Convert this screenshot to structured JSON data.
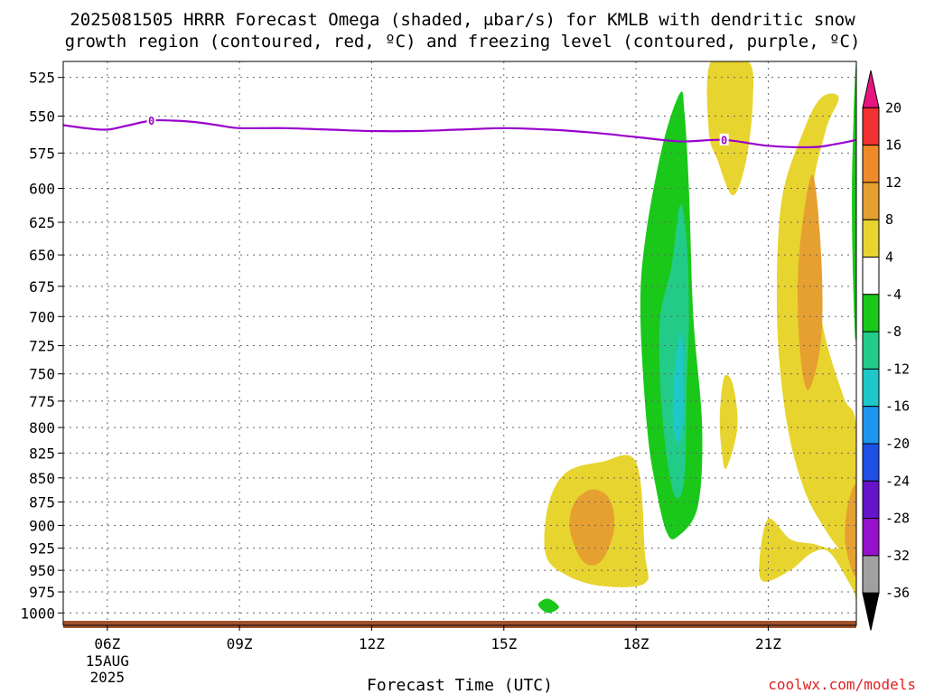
{
  "chart_data": {
    "type": "heatmap",
    "title_line1": "2025081505 HRRR Forecast Omega (shaded, μbar/s) for KMLB with dendritic snow",
    "title_line2": "growth region (contoured, red, ºC) and freezing level (contoured, purple, ºC)",
    "xlabel": "Forecast Time (UTC)",
    "x_ticks": [
      {
        "hour": 6,
        "label": "06Z",
        "sub1": "15AUG",
        "sub2": "2025"
      },
      {
        "hour": 9,
        "label": "09Z"
      },
      {
        "hour": 12,
        "label": "12Z"
      },
      {
        "hour": 15,
        "label": "15Z"
      },
      {
        "hour": 18,
        "label": "18Z"
      },
      {
        "hour": 21,
        "label": "21Z"
      }
    ],
    "xlim": [
      5,
      23
    ],
    "y_ticks": [
      "525",
      "550",
      "575",
      "600",
      "625",
      "650",
      "675",
      "700",
      "725",
      "750",
      "775",
      "800",
      "825",
      "850",
      "875",
      "900",
      "925",
      "950",
      "975",
      "1000"
    ],
    "ylim": [
      1015,
      515
    ],
    "y_scale": "log-pressure (mb)",
    "colorbar": {
      "labels": [
        "20",
        "16",
        "12",
        "8",
        "4",
        "-4",
        "-8",
        "-12",
        "-16",
        "-20",
        "-24",
        "-28",
        "-32",
        "-36"
      ],
      "colors": {
        "c20": "#e8157f",
        "c16": "#f03232",
        "c12": "#ee8a28",
        "c8": "#e6a030",
        "c4": "#e8d42e",
        "cwhite": "#ffffff",
        "cm4": "#19c819",
        "cm8": "#22cc88",
        "cm12": "#1ec8c8",
        "cm16": "#1e96f0",
        "cm20": "#1e50e6",
        "cm24": "#6614cc",
        "cm28": "#9611cc",
        "cm32": "#a0a0a0",
        "cm36": "#000000"
      }
    },
    "freezing_level": {
      "label": "0",
      "color": "#9900cc",
      "points": [
        [
          5,
          556
        ],
        [
          5.5,
          558
        ],
        [
          6,
          559
        ],
        [
          6.5,
          556
        ],
        [
          7,
          553
        ],
        [
          7.5,
          553
        ],
        [
          8,
          554
        ],
        [
          8.5,
          556
        ],
        [
          9,
          558
        ],
        [
          10,
          558
        ],
        [
          11,
          559
        ],
        [
          12,
          560
        ],
        [
          13,
          560
        ],
        [
          14,
          559
        ],
        [
          15,
          558
        ],
        [
          16,
          559
        ],
        [
          17,
          561
        ],
        [
          18,
          564
        ],
        [
          19,
          567
        ],
        [
          20,
          566
        ],
        [
          21,
          570
        ],
        [
          22,
          571
        ],
        [
          22.5,
          569
        ],
        [
          23,
          566
        ]
      ]
    },
    "omega_regions": [
      {
        "name": "moderate-sinking-1",
        "color_key": "c4",
        "points": [
          [
            17.2,
            834
          ],
          [
            16.4,
            845
          ],
          [
            16.0,
            880
          ],
          [
            15.95,
            932
          ],
          [
            16.4,
            955
          ],
          [
            17.2,
            968
          ],
          [
            18.2,
            965
          ],
          [
            18.2,
            930
          ],
          [
            18.0,
            834
          ]
        ]
      },
      {
        "name": "strong-sinking-1",
        "color_key": "c8",
        "points": [
          [
            17.0,
            862
          ],
          [
            16.6,
            876
          ],
          [
            16.5,
            905
          ],
          [
            16.8,
            940
          ],
          [
            17.2,
            940
          ],
          [
            17.5,
            905
          ],
          [
            17.4,
            872
          ]
        ]
      },
      {
        "name": "upward-green-small",
        "color_key": "cm4",
        "points": [
          [
            16.0,
            983
          ],
          [
            15.78,
            990
          ],
          [
            16.0,
            1000
          ],
          [
            16.25,
            993
          ]
        ]
      },
      {
        "name": "upward-main-green",
        "color_key": "cm4",
        "points": [
          [
            19.0,
            535
          ],
          [
            18.6,
            570
          ],
          [
            18.2,
            640
          ],
          [
            18.1,
            700
          ],
          [
            18.25,
            800
          ],
          [
            18.45,
            860
          ],
          [
            18.7,
            908
          ],
          [
            18.95,
            912
          ],
          [
            19.4,
            880
          ],
          [
            19.5,
            800
          ],
          [
            19.3,
            700
          ],
          [
            19.2,
            600
          ],
          [
            19.1,
            548
          ]
        ]
      },
      {
        "name": "upward-main-teal",
        "color_key": "cm8",
        "points": [
          [
            19.0,
            612
          ],
          [
            18.8,
            660
          ],
          [
            18.55,
            700
          ],
          [
            18.55,
            760
          ],
          [
            18.7,
            830
          ],
          [
            18.9,
            870
          ],
          [
            19.1,
            850
          ],
          [
            19.15,
            760
          ],
          [
            19.2,
            700
          ],
          [
            19.15,
            640
          ]
        ]
      },
      {
        "name": "upward-main-cyan",
        "color_key": "cm12",
        "points": [
          [
            19.0,
            715
          ],
          [
            18.85,
            760
          ],
          [
            18.85,
            800
          ],
          [
            18.97,
            815
          ],
          [
            19.07,
            790
          ],
          [
            19.07,
            735
          ]
        ]
      },
      {
        "name": "sinking-top-yellow",
        "color_key": "c4",
        "points": [
          [
            19.7,
            515
          ],
          [
            19.65,
            560
          ],
          [
            19.85,
            580
          ],
          [
            20.2,
            605
          ],
          [
            20.5,
            580
          ],
          [
            20.65,
            540
          ],
          [
            20.55,
            515
          ]
        ]
      },
      {
        "name": "sinking-right-yellow",
        "color_key": "c4",
        "points": [
          [
            22.2,
            538
          ],
          [
            21.8,
            560
          ],
          [
            21.3,
            610
          ],
          [
            21.2,
            700
          ],
          [
            21.4,
            790
          ],
          [
            21.8,
            860
          ],
          [
            22.3,
            905
          ],
          [
            22.7,
            930
          ],
          [
            23.0,
            935
          ],
          [
            23.0,
            800
          ],
          [
            22.7,
            770
          ],
          [
            22.2,
            700
          ],
          [
            22.0,
            610
          ],
          [
            22.3,
            560
          ],
          [
            22.6,
            538
          ]
        ]
      },
      {
        "name": "sinking-right-orange",
        "color_key": "c8",
        "points": [
          [
            22.0,
            590
          ],
          [
            21.7,
            650
          ],
          [
            21.7,
            720
          ],
          [
            21.9,
            765
          ],
          [
            22.2,
            720
          ],
          [
            22.2,
            650
          ]
        ]
      },
      {
        "name": "sinking-bottom-right-yellow",
        "color_key": "c4",
        "points": [
          [
            21.0,
            893
          ],
          [
            20.8,
            940
          ],
          [
            20.9,
            963
          ],
          [
            21.5,
            950
          ],
          [
            22.0,
            930
          ],
          [
            22.4,
            930
          ],
          [
            22.9,
            970
          ],
          [
            23.0,
            978
          ],
          [
            23.0,
            900
          ],
          [
            22.6,
            925
          ],
          [
            22.0,
            920
          ],
          [
            21.5,
            915
          ]
        ]
      },
      {
        "name": "sinking-edge-orange",
        "color_key": "c8",
        "points": [
          [
            23.0,
            860
          ],
          [
            22.8,
            880
          ],
          [
            22.75,
            920
          ],
          [
            23.0,
            955
          ]
        ]
      },
      {
        "name": "sinking-mid-yellow",
        "color_key": "c4",
        "points": [
          [
            20.0,
            753
          ],
          [
            19.9,
            790
          ],
          [
            19.95,
            825
          ],
          [
            20.05,
            840
          ],
          [
            20.3,
            800
          ],
          [
            20.2,
            760
          ]
        ]
      },
      {
        "name": "upward-edge-green",
        "color_key": "cm4",
        "points": [
          [
            23.0,
            518
          ],
          [
            22.9,
            600
          ],
          [
            22.95,
            700
          ],
          [
            23.0,
            700
          ]
        ]
      }
    ],
    "terrain_color": "#a0522d"
  },
  "credit": "coolwx.com/models"
}
